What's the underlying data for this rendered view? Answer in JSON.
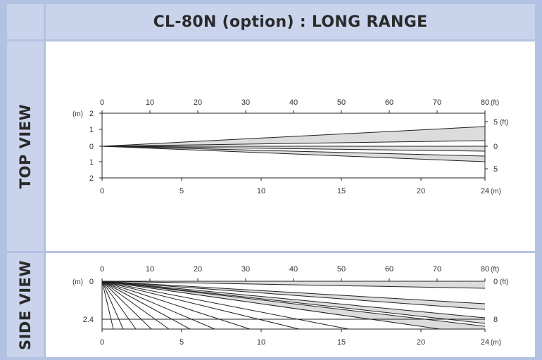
{
  "title": "CL-80N (option) : LONG RANGE",
  "panels": {
    "top": {
      "label": "TOP VIEW",
      "ft_ticks": [
        "0",
        "10",
        "20",
        "30",
        "40",
        "50",
        "60",
        "70",
        "80"
      ],
      "ft_unit": "(ft)",
      "m_ticks": [
        "0",
        "5",
        "10",
        "15",
        "20",
        "24"
      ],
      "m_unit": "(m)",
      "left_axis_unit": "(m)",
      "left_axis_ticks": [
        "2",
        "1",
        "0",
        "1",
        "2"
      ],
      "right_axis_unit": "(ft)",
      "right_axis_ticks": [
        "5",
        "0",
        "5"
      ]
    },
    "side": {
      "label": "SIDE VIEW",
      "ft_ticks": [
        "0",
        "10",
        "20",
        "30",
        "40",
        "50",
        "60",
        "70",
        "80"
      ],
      "ft_unit": "(ft)",
      "m_ticks": [
        "0",
        "5",
        "10",
        "15",
        "20",
        "24"
      ],
      "m_unit": "(m)",
      "left_axis_unit": "(m)",
      "left_axis_ticks": [
        "0",
        "2.4"
      ],
      "right_axis_ticks": [
        "0",
        "8"
      ],
      "right_axis_unit": "(ft)"
    }
  },
  "colors": {
    "frame": "#b3c2e2",
    "band": "#c9d4ec",
    "zone_fill": "#dcdcdc",
    "line": "#222222"
  }
}
